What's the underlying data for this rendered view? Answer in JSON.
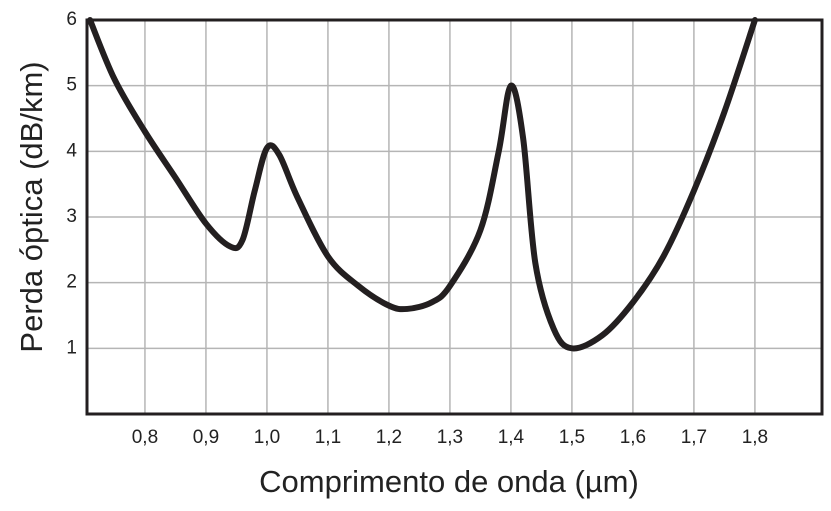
{
  "chart_data": {
    "type": "line",
    "x_label": "Comprimento de onda (µm)",
    "y_label": "Perda óptica (dB/km)",
    "x": [
      0.71,
      0.75,
      0.8,
      0.85,
      0.9,
      0.94,
      0.96,
      0.98,
      1.0,
      1.02,
      1.05,
      1.1,
      1.15,
      1.2,
      1.23,
      1.27,
      1.3,
      1.35,
      1.38,
      1.4,
      1.42,
      1.44,
      1.47,
      1.5,
      1.55,
      1.6,
      1.65,
      1.7,
      1.75,
      1.8
    ],
    "values": [
      6.0,
      5.1,
      4.3,
      3.6,
      2.9,
      2.55,
      2.65,
      3.4,
      4.05,
      3.95,
      3.3,
      2.4,
      1.95,
      1.65,
      1.6,
      1.7,
      1.95,
      2.8,
      4.0,
      5.0,
      4.2,
      2.3,
      1.3,
      1.0,
      1.2,
      1.7,
      2.4,
      3.4,
      4.6,
      6.0
    ],
    "color": "#231f20",
    "xlim": [
      0.705,
      1.91
    ],
    "ylim": [
      0,
      6
    ],
    "xticks": [
      {
        "value": 0.8,
        "label": "0,8"
      },
      {
        "value": 0.9,
        "label": "0,9"
      },
      {
        "value": 1.0,
        "label": "1,0"
      },
      {
        "value": 1.1,
        "label": "1,1"
      },
      {
        "value": 1.2,
        "label": "1,2"
      },
      {
        "value": 1.3,
        "label": "1,3"
      },
      {
        "value": 1.4,
        "label": "1,4"
      },
      {
        "value": 1.5,
        "label": "1,5"
      },
      {
        "value": 1.6,
        "label": "1,6"
      },
      {
        "value": 1.7,
        "label": "1,7"
      },
      {
        "value": 1.8,
        "label": "1,8"
      }
    ],
    "yticks": [
      1,
      2,
      3,
      4,
      5,
      6
    ],
    "grid": true
  }
}
